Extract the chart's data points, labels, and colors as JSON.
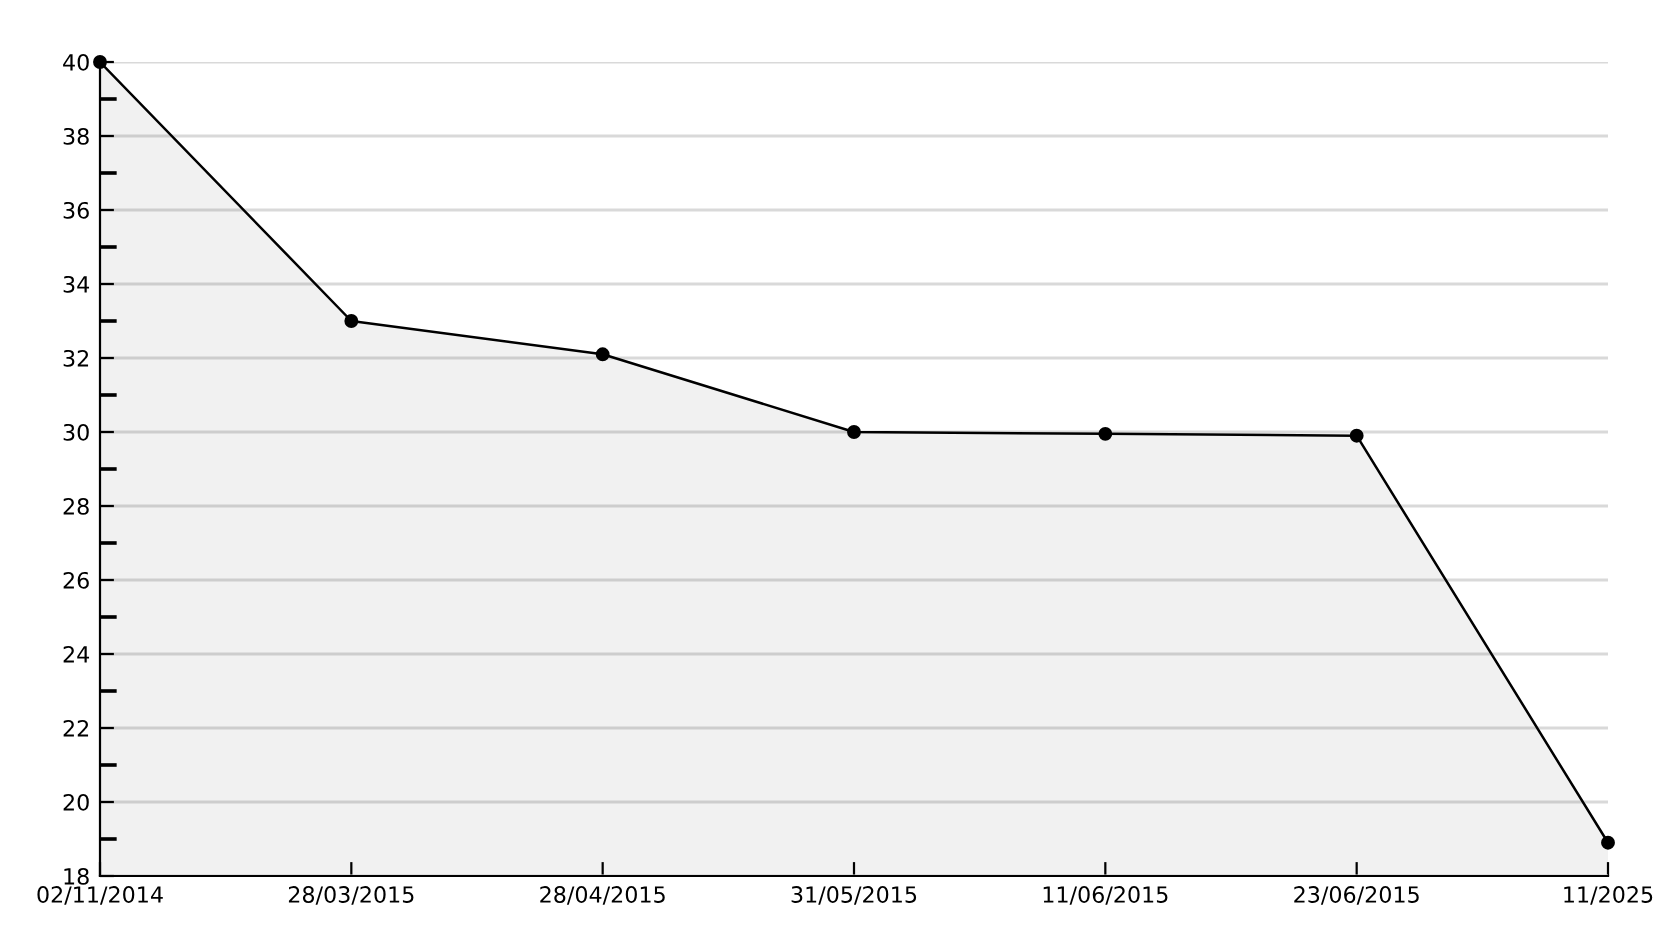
{
  "chart_data": {
    "type": "area",
    "categories": [
      "02/11/2014",
      "28/03/2015",
      "28/04/2015",
      "31/05/2015",
      "11/06/2015",
      "23/06/2015",
      "11/2025"
    ],
    "series": [
      {
        "color": "#000000",
        "values": [
          40,
          33,
          32.1,
          30,
          29.95,
          29.9,
          18.9
        ]
      }
    ],
    "ylim": [
      18,
      40
    ],
    "yticks": [
      18,
      {
        "value": 19,
        "label": null
      },
      20,
      {
        "value": 21,
        "label": null
      },
      22,
      {
        "value": 23,
        "label": null
      },
      24,
      {
        "value": 25,
        "label": null
      },
      26,
      {
        "value": 27,
        "label": null
      },
      28,
      {
        "value": 29,
        "label": null
      },
      30,
      {
        "value": 31,
        "label": null
      },
      32,
      {
        "value": 33,
        "label": null
      },
      34,
      {
        "value": 35,
        "label": null
      },
      36,
      {
        "value": 37,
        "label": null
      },
      38,
      {
        "value": 39,
        "label": null
      },
      40
    ],
    "grid": "y",
    "marker": "circle",
    "line_style": "solid",
    "legend": false
  }
}
